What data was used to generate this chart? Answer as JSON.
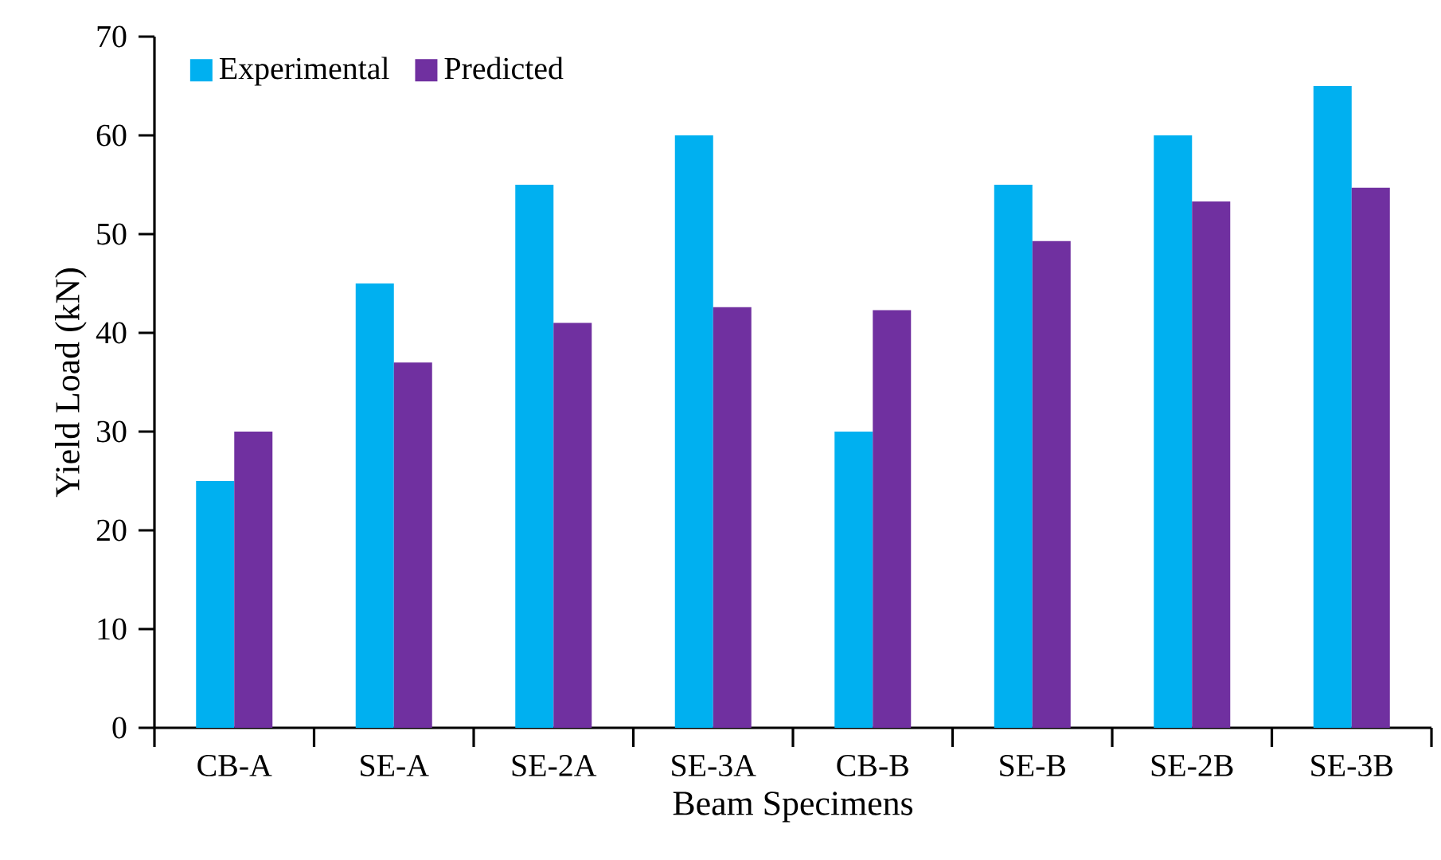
{
  "chart_data": {
    "type": "bar",
    "xlabel": "Beam Specimens",
    "ylabel": "Yield Load (kN)",
    "categories": [
      "CB-A",
      "SE-A",
      "SE-2A",
      "SE-3A",
      "CB-B",
      "SE-B",
      "SE-2B",
      "SE-3B"
    ],
    "series": [
      {
        "name": "Experimental",
        "color": "#00b0f0",
        "values": [
          25,
          45,
          55,
          60,
          30,
          55,
          60,
          65
        ]
      },
      {
        "name": "Predicted",
        "color": "#7030a0",
        "values": [
          30,
          37,
          41,
          42.6,
          42.3,
          49.3,
          53.3,
          54.7
        ]
      }
    ],
    "ylim": [
      0,
      70
    ],
    "yticks": [
      0,
      10,
      20,
      30,
      40,
      50,
      60,
      70
    ],
    "grid": false,
    "legend": "top left"
  }
}
